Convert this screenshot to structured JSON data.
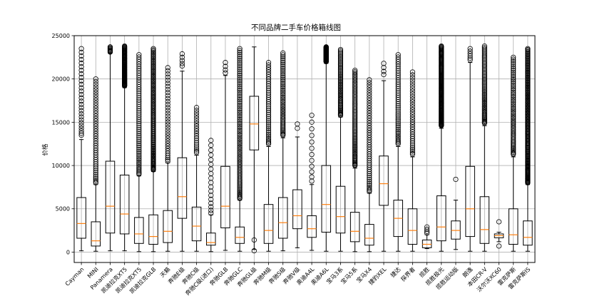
{
  "chart_data": {
    "type": "box",
    "title": "不同品牌二手车价格箱线图",
    "xlabel": "",
    "ylabel": "价格",
    "ylim": [
      -1200,
      25000
    ],
    "yticks": [
      0,
      5000,
      10000,
      15000,
      20000,
      25000
    ],
    "grid": true,
    "categories": [
      "Cayman",
      "MINI",
      "Panamera",
      "凯迪拉克XT5",
      "凯迪拉克XT5",
      "凯迪拉克GLB",
      "天籁",
      "奔驰E级",
      "奔驰C级",
      "奔驰C级(进口)",
      "奔驰GLB",
      "奔驰GLC",
      "奔驰GL级",
      "奔驰M级",
      "奔驰S级",
      "奔驰V级",
      "奥迪A4L",
      "奥迪A6L",
      "宝马3系",
      "宝马5系",
      "宝马X4",
      "捷豹XEL",
      "捷达",
      "探界者",
      "揽胜",
      "揽胜极光",
      "揽胜运动版",
      "朗逸",
      "本田CR-V",
      "沃尔沃XC60",
      "雷克萨斯",
      "雷克萨斯IS"
    ],
    "series": [
      {
        "min": 150,
        "q1": 1600,
        "median": 3300,
        "q3": 6300,
        "max": 13000,
        "flier_low": 13500,
        "flier_high": 23500,
        "flier_count": 28
      },
      {
        "min": 100,
        "q1": 700,
        "median": 1300,
        "q3": 3500,
        "max": 7800,
        "flier_low": 8000,
        "flier_high": 20000,
        "flier_count": 45
      },
      {
        "min": 150,
        "q1": 2200,
        "median": 5300,
        "q3": 10500,
        "max": 23000,
        "flier_low": 23100,
        "flier_high": 23700,
        "flier_count": 8
      },
      {
        "min": 150,
        "q1": 2100,
        "median": 4400,
        "q3": 8900,
        "max": 19000,
        "flier_low": 19200,
        "flier_high": 23800,
        "flier_count": 70
      },
      {
        "min": 50,
        "q1": 1000,
        "median": 2100,
        "q3": 4000,
        "max": 8800,
        "flier_low": 9000,
        "flier_high": 22800,
        "flier_count": 60
      },
      {
        "min": 50,
        "q1": 900,
        "median": 1800,
        "q3": 4300,
        "max": 9300,
        "flier_low": 9500,
        "flier_high": 23500,
        "flier_count": 110
      },
      {
        "min": 100,
        "q1": 1100,
        "median": 2400,
        "q3": 4800,
        "max": 10300,
        "flier_low": 10500,
        "flier_high": 21300,
        "flier_count": 35
      },
      {
        "min": 100,
        "q1": 3900,
        "median": 6400,
        "q3": 10900,
        "max": 20900,
        "flier_low": 21500,
        "flier_high": 22900,
        "flier_count": 5
      },
      {
        "min": 100,
        "q1": 1300,
        "median": 3000,
        "q3": 5200,
        "max": 11200,
        "flier_low": 11500,
        "flier_high": 16700,
        "flier_count": 20
      },
      {
        "min": 50,
        "q1": 800,
        "median": 1100,
        "q3": 2200,
        "max": 4300,
        "flier_low": 4500,
        "flier_high": 12900,
        "flier_count": 18
      },
      {
        "min": 200,
        "q1": 2800,
        "median": 5300,
        "q3": 9900,
        "max": 20400,
        "flier_low": 20700,
        "flier_high": 21900,
        "flier_count": 4
      },
      {
        "min": 100,
        "q1": 1000,
        "median": 1700,
        "q3": 2900,
        "max": 6000,
        "flier_low": 6200,
        "flier_high": 23500,
        "flier_count": 90
      },
      {
        "min": 300,
        "q1": 11800,
        "median": 14800,
        "q3": 18000,
        "max": 23700,
        "flier_low": 150,
        "flier_high": 1400,
        "flier_count": 2
      },
      {
        "min": 100,
        "q1": 1000,
        "median": 2500,
        "q3": 5500,
        "max": 12200,
        "flier_low": 12500,
        "flier_high": 21900,
        "flier_count": 40
      },
      {
        "min": 150,
        "q1": 1600,
        "median": 3400,
        "q3": 6300,
        "max": 13200,
        "flier_low": 13500,
        "flier_high": 23000,
        "flier_count": 50
      },
      {
        "min": 500,
        "q1": 2700,
        "median": 4200,
        "q3": 7200,
        "max": 13300,
        "flier_low": 14300,
        "flier_high": 14800,
        "flier_count": 2
      },
      {
        "min": 200,
        "q1": 1700,
        "median": 2700,
        "q3": 4200,
        "max": 7800,
        "flier_low": 8200,
        "flier_high": 15800,
        "flier_count": 12
      },
      {
        "min": 100,
        "q1": 2300,
        "median": 5500,
        "q3": 10000,
        "max": 21800,
        "flier_low": 22000,
        "flier_high": 23700,
        "flier_count": 80
      },
      {
        "min": 100,
        "q1": 2200,
        "median": 4100,
        "q3": 7600,
        "max": 15600,
        "flier_low": 15800,
        "flier_high": 23400,
        "flier_count": 55
      },
      {
        "min": 50,
        "q1": 1200,
        "median": 2400,
        "q3": 4600,
        "max": 9700,
        "flier_low": 10000,
        "flier_high": 21000,
        "flier_count": 70
      },
      {
        "min": 50,
        "q1": 800,
        "median": 1600,
        "q3": 3200,
        "max": 6800,
        "flier_low": 7000,
        "flier_high": 19900,
        "flier_count": 50
      },
      {
        "min": 100,
        "q1": 5400,
        "median": 7900,
        "q3": 11100,
        "max": 19800,
        "flier_low": 20500,
        "flier_high": 21800,
        "flier_count": 4
      },
      {
        "min": 100,
        "q1": 1800,
        "median": 3900,
        "q3": 6000,
        "max": 12200,
        "flier_low": 12500,
        "flier_high": 22800,
        "flier_count": 45
      },
      {
        "min": 100,
        "q1": 900,
        "median": 2500,
        "q3": 5000,
        "max": 11000,
        "flier_low": 11300,
        "flier_high": 20800,
        "flier_count": 35
      },
      {
        "min": 400,
        "q1": 500,
        "median": 900,
        "q3": 1400,
        "max": 2000,
        "flier_low": 2200,
        "flier_high": 2900,
        "flier_count": 4
      },
      {
        "min": 100,
        "q1": 1300,
        "median": 2900,
        "q3": 6500,
        "max": 14300,
        "flier_low": 14600,
        "flier_high": 23800,
        "flier_count": 120
      },
      {
        "min": 300,
        "q1": 1500,
        "median": 2500,
        "q3": 3600,
        "max": 6000,
        "flier_low": 8400,
        "flier_high": 8400,
        "flier_count": 1
      },
      {
        "min": 100,
        "q1": 1800,
        "median": 5000,
        "q3": 9900,
        "max": 21900,
        "flier_low": 22200,
        "flier_high": 23500,
        "flier_count": 6
      },
      {
        "min": 100,
        "q1": 1000,
        "median": 2600,
        "q3": 6400,
        "max": 14600,
        "flier_low": 14900,
        "flier_high": 23800,
        "flier_count": 60
      },
      {
        "min": 1200,
        "q1": 1650,
        "median": 1900,
        "q3": 2100,
        "max": 2300,
        "flier_low": 700,
        "flier_high": 3500,
        "flier_count": 2
      },
      {
        "min": 100,
        "q1": 900,
        "median": 2000,
        "q3": 5000,
        "max": 11000,
        "flier_low": 11300,
        "flier_high": 22500,
        "flier_count": 60
      },
      {
        "min": 100,
        "q1": 800,
        "median": 1700,
        "q3": 3600,
        "max": 7800,
        "flier_low": 8000,
        "flier_high": 23500,
        "flier_count": 150
      }
    ],
    "colors": {
      "box": "#000000",
      "median": "#ff7f0e",
      "grid": "#b0b0b0"
    }
  }
}
